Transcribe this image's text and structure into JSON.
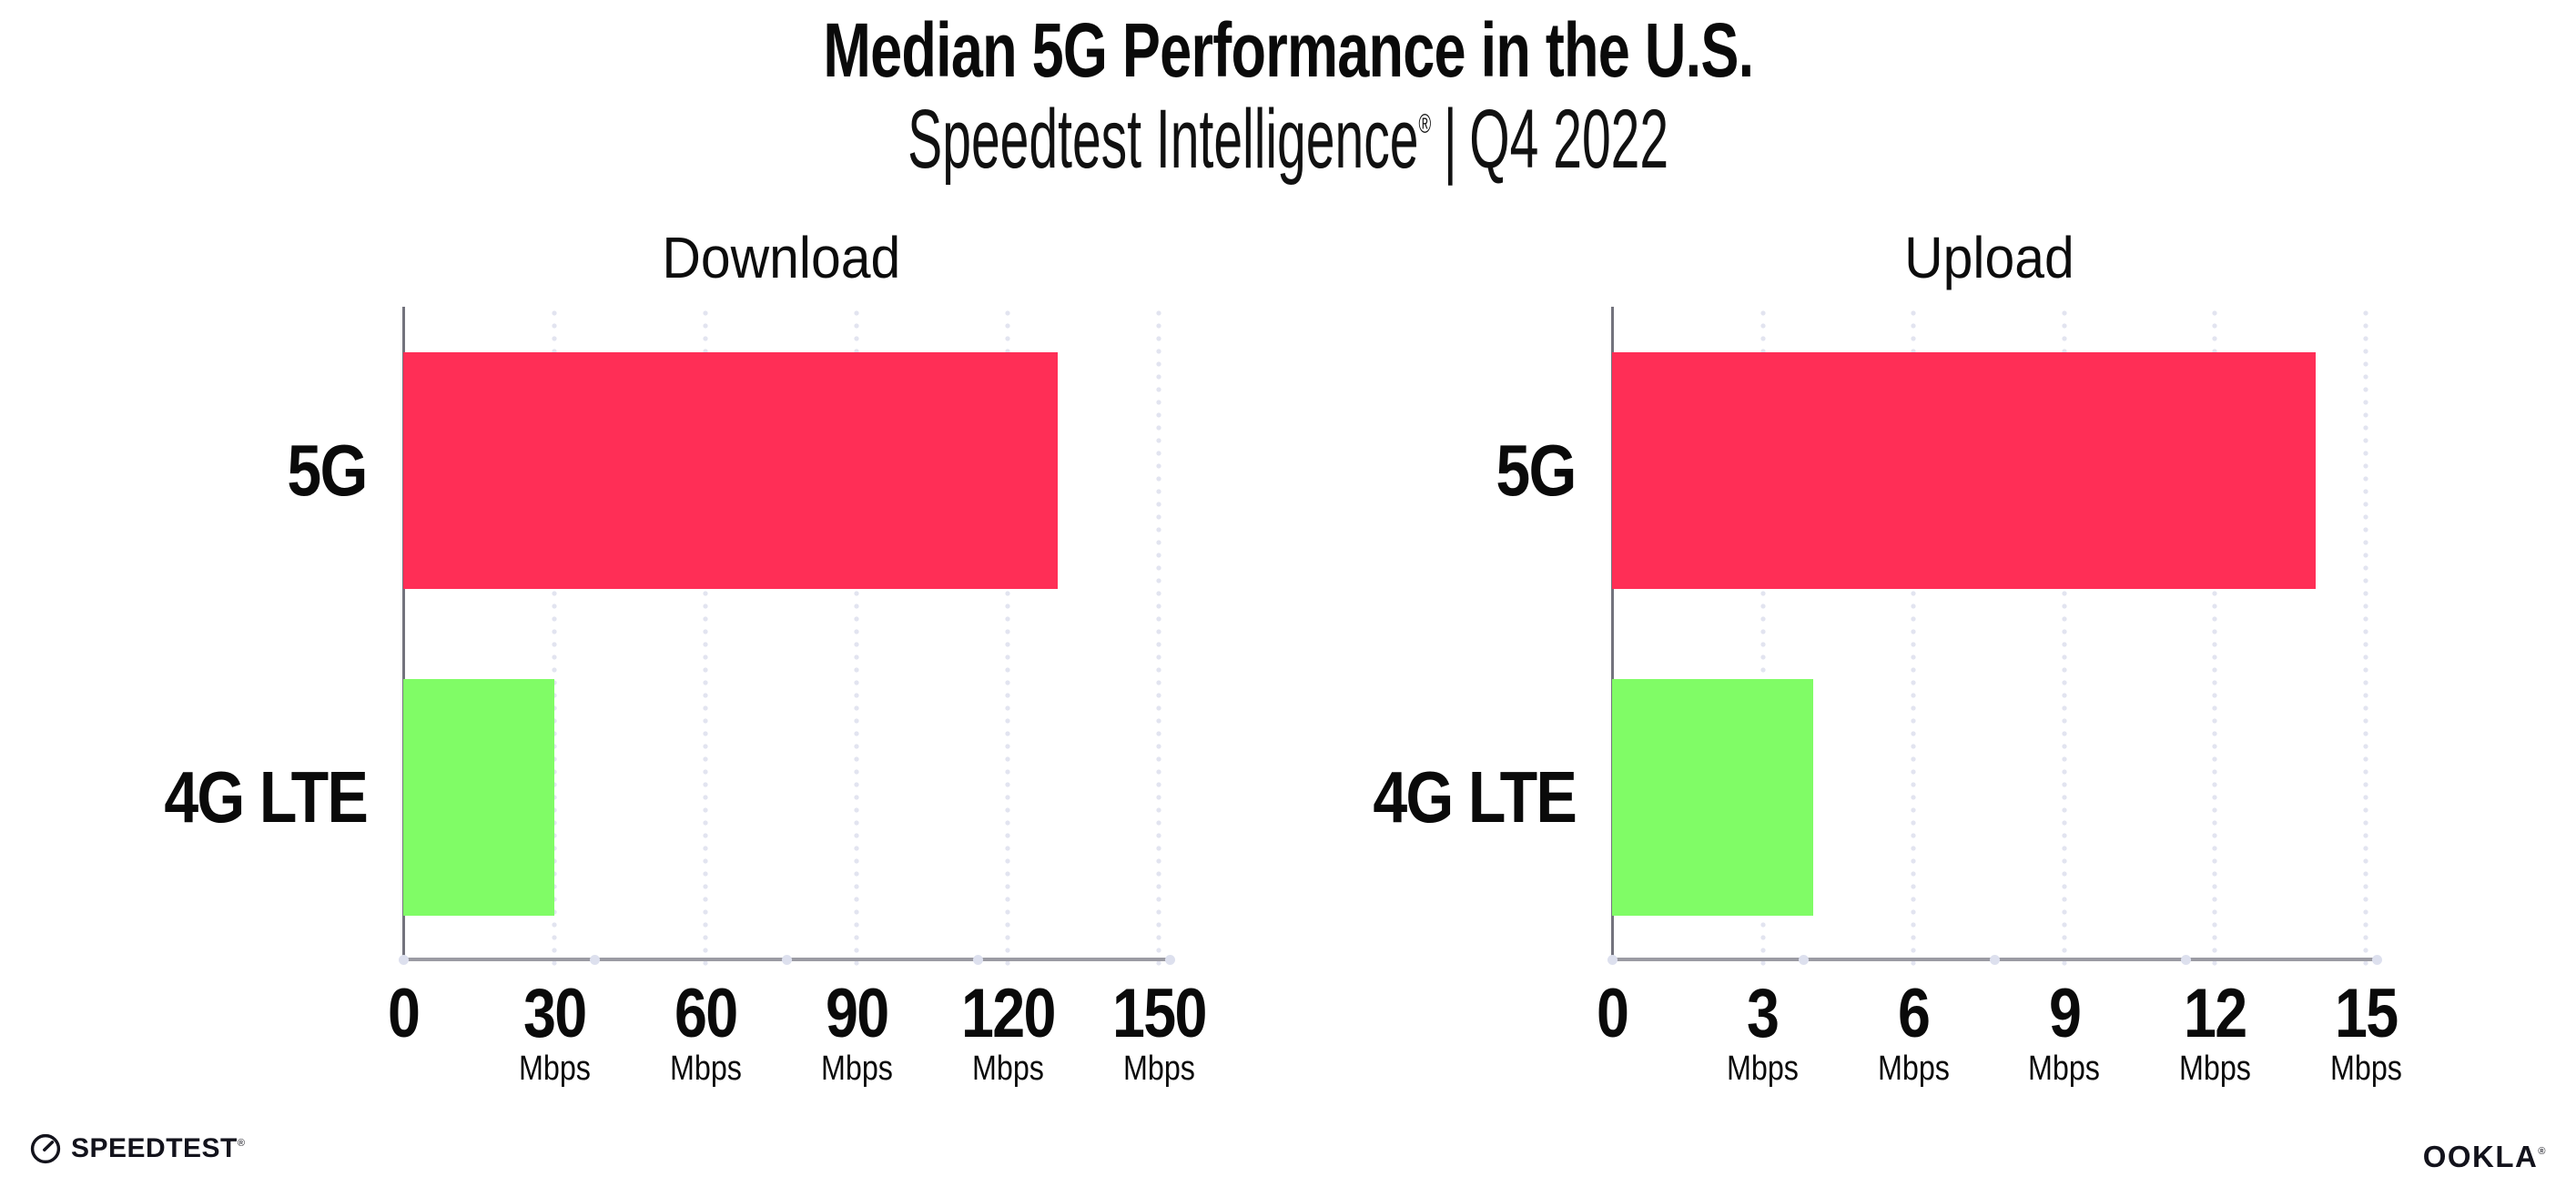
{
  "header": {
    "title": "Median 5G Performance in the U.S.",
    "subtitle": {
      "product": "Speedtest Intelligence",
      "reg_mark": "®",
      "separator": "|",
      "period": "Q4 2022"
    }
  },
  "footer": {
    "speedtest_icon": "speedometer-gauge-icon",
    "speedtest_wordmark": "SPEEDTEST",
    "speedtest_reg_mark": "®",
    "ookla_wordmark": "OOKLA",
    "ookla_reg_mark": "®"
  },
  "colors": {
    "bar_5g": "#FF2E56",
    "bar_4g_lte": "#80FC66",
    "x_axis_line": "#9B9BA3",
    "y_axis_line": "#73737D",
    "gridline_dot": "#E2E4F0",
    "axis_marker_dot": "#DDE0EE",
    "text": "#0A0A0A",
    "logo_text": "#13131C",
    "background": "#FFFFFF"
  },
  "chart_data": [
    {
      "type": "bar",
      "orientation": "horizontal",
      "title": "Download",
      "categories": [
        "5G",
        "4G LTE"
      ],
      "values": [
        130,
        30
      ],
      "unit": "Mbps",
      "xlim": [
        0,
        150
      ],
      "xticks": [
        0,
        30,
        60,
        90,
        120,
        150
      ],
      "zero_tick_unit_hidden": true,
      "bar_colors": [
        "#FF2E56",
        "#80FC66"
      ],
      "grid": "dotted vertical gridlines at labeled ticks",
      "legend": "none"
    },
    {
      "type": "bar",
      "orientation": "horizontal",
      "title": "Upload",
      "categories": [
        "5G",
        "4G LTE"
      ],
      "values": [
        14,
        4
      ],
      "unit": "Mbps",
      "xlim": [
        0,
        15
      ],
      "xticks": [
        0,
        3,
        6,
        9,
        12,
        15
      ],
      "zero_tick_unit_hidden": true,
      "bar_colors": [
        "#FF2E56",
        "#80FC66"
      ],
      "grid": "dotted vertical gridlines at labeled ticks",
      "legend": "none"
    }
  ]
}
